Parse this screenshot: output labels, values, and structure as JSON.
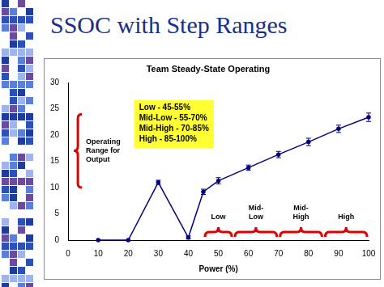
{
  "slide_title": "SSOC with Step Ranges",
  "chart_data": {
    "type": "line",
    "title": "Team Steady-State Operating",
    "xlabel": "Power (%)",
    "x": [
      10,
      20,
      30,
      40,
      45,
      50,
      60,
      70,
      80,
      90,
      100
    ],
    "values": [
      0,
      0,
      11,
      0.5,
      9.2,
      11.3,
      13.8,
      16.3,
      18.7,
      21.2,
      23.4
    ],
    "errors": [
      0,
      0,
      0.4,
      0.3,
      0.5,
      0.6,
      0.5,
      0.6,
      0.7,
      0.7,
      0.8
    ],
    "color": "#000080",
    "marker": "circle",
    "xlim": [
      0,
      100
    ],
    "xticks": [
      0,
      10,
      20,
      30,
      40,
      50,
      60,
      70,
      80,
      90,
      100
    ],
    "ylim": [
      0,
      30
    ],
    "yticks": [
      0,
      5,
      10,
      15,
      20,
      25,
      30
    ],
    "grid": false,
    "annotation_box": [
      "Low - 45-55%",
      "Mid-Low - 55-70%",
      "Mid-High - 70-85%",
      "High - 85-100%"
    ],
    "operating_range": {
      "label": "Operating Range for Output",
      "range": [
        10,
        24
      ]
    },
    "step_ranges": [
      {
        "label": "Low",
        "range": [
          45,
          55
        ]
      },
      {
        "label": "Mid-Low",
        "range": [
          55,
          70
        ]
      },
      {
        "label": "Mid-High",
        "range": [
          70,
          85
        ]
      },
      {
        "label": "High",
        "range": [
          85,
          100
        ]
      }
    ]
  }
}
